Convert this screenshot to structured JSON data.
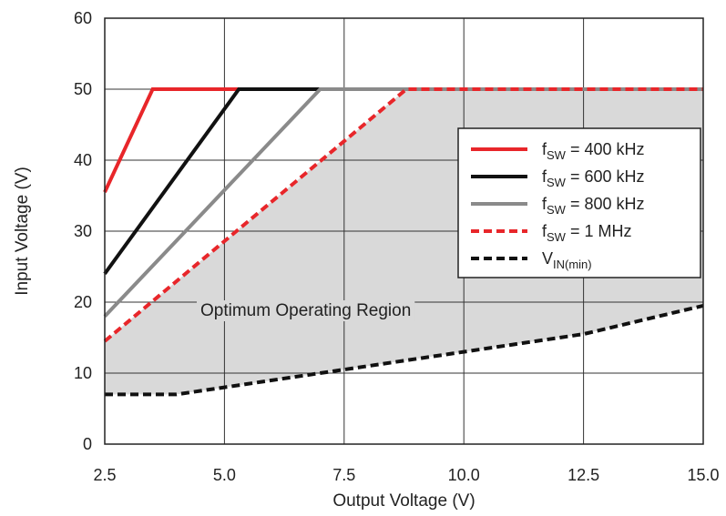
{
  "chart_data": {
    "type": "line",
    "xlabel": "Output Voltage (V)",
    "ylabel": "Input Voltage (V)",
    "xlim": [
      2.5,
      15.0
    ],
    "ylim": [
      0,
      60
    ],
    "x_ticks": [
      "2.5",
      "5.0",
      "7.5",
      "10.0",
      "12.5",
      "15.0"
    ],
    "y_ticks": [
      "0",
      "10",
      "20",
      "30",
      "40",
      "50",
      "60"
    ],
    "grid": true,
    "legend_position": "right",
    "annotation": "Optimum Operating Region",
    "region_fill_color": "#d9d9d9",
    "series": [
      {
        "name_main": "f",
        "name_sub": "SW",
        "name_rest": " = 400 kHz",
        "color": "#e8262a",
        "dash": "solid",
        "points": [
          [
            2.5,
            35.5
          ],
          [
            3.5,
            50
          ],
          [
            15.0,
            50
          ]
        ]
      },
      {
        "name_main": "f",
        "name_sub": "SW",
        "name_rest": " = 600 kHz",
        "color": "#111111",
        "dash": "solid",
        "points": [
          [
            2.5,
            24
          ],
          [
            5.3,
            50
          ],
          [
            15.0,
            50
          ]
        ]
      },
      {
        "name_main": "f",
        "name_sub": "SW",
        "name_rest": " = 800 kHz",
        "color": "#8a8a8a",
        "dash": "solid",
        "points": [
          [
            2.5,
            18
          ],
          [
            7.0,
            50
          ],
          [
            15.0,
            50
          ]
        ]
      },
      {
        "name_main": "f",
        "name_sub": "SW",
        "name_rest": " = 1 MHz",
        "color": "#e8262a",
        "dash": "dashed",
        "points": [
          [
            2.5,
            14.5
          ],
          [
            8.8,
            50
          ],
          [
            15.0,
            50
          ]
        ]
      },
      {
        "name_main": "V",
        "name_sub": "IN(min)",
        "name_rest": "",
        "color": "#111111",
        "dash": "dashed",
        "points": [
          [
            2.5,
            7
          ],
          [
            4.0,
            7
          ],
          [
            5.0,
            8
          ],
          [
            7.5,
            10.5
          ],
          [
            10.0,
            13
          ],
          [
            12.5,
            15.5
          ],
          [
            15.0,
            19.5
          ]
        ]
      }
    ]
  }
}
